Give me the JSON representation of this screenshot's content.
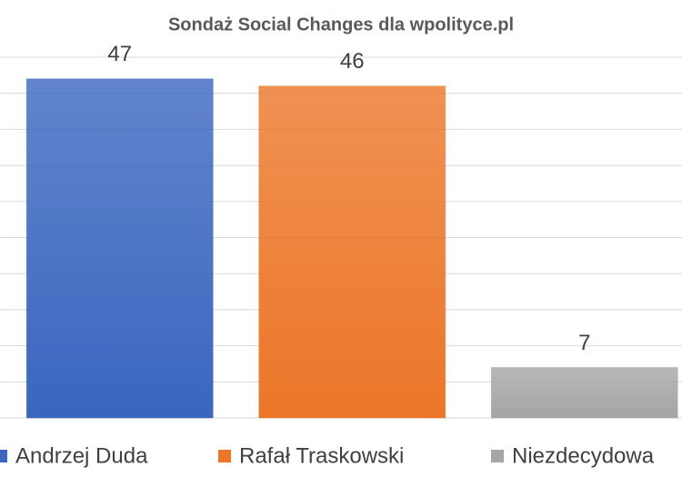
{
  "chart_data": {
    "type": "bar",
    "title": "Sondaż Social Changes dla wpolityce.pl",
    "categories": [
      "Andrzej Duda",
      "Rafał Traskowski",
      "Niezdecydowa"
    ],
    "values": [
      47,
      46,
      7
    ],
    "colors": [
      "#3a66c0",
      "#ec7628",
      "#a5a5a5"
    ],
    "ylim": [
      0,
      50
    ],
    "yticks": [
      0,
      5,
      10,
      15,
      20,
      25,
      30,
      35,
      40,
      45,
      50
    ],
    "grid": true,
    "legend": "bottom"
  }
}
